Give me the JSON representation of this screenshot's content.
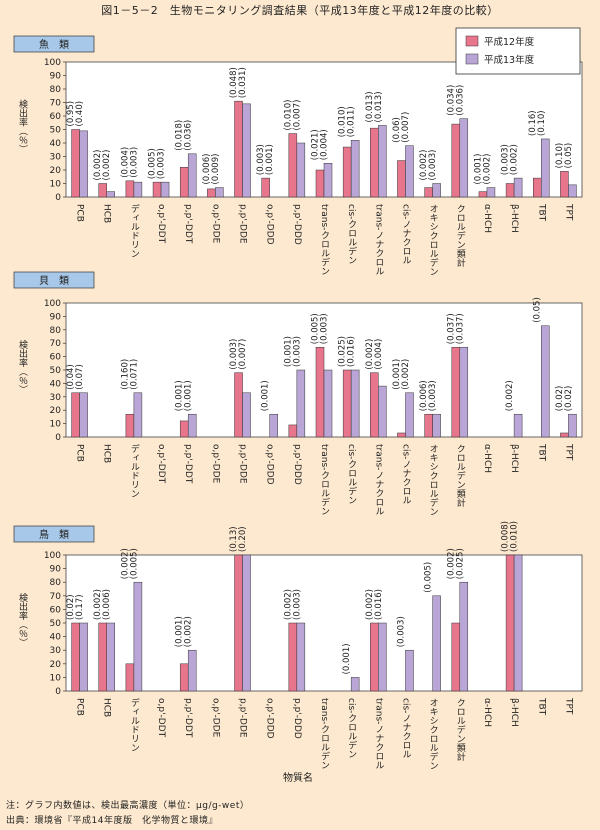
{
  "title": "図1－5－2　生物モニタリング調査結果（平成13年度と平成12年度の比較）",
  "colors": {
    "series_2000": "#e7758c",
    "series_2001": "#b9a6d6",
    "panel_label_bg": "#a7c8e8",
    "background": "#fde9cf",
    "plot_bg": "#ffffff"
  },
  "chart_data": [
    {
      "type": "bar",
      "title": "魚　類",
      "ylabel": "検出率（％）",
      "ylim": [
        0,
        100
      ],
      "yticks": [
        0,
        10,
        20,
        30,
        40,
        50,
        60,
        70,
        80,
        90,
        100
      ],
      "legend": {
        "placement": "top-right",
        "entries": [
          "平成12年度",
          "平成13年度"
        ]
      },
      "categories": [
        "PCB",
        "HCB",
        "ディルドリン",
        "o,p'-DDT",
        "p,p'-DDT",
        "o,p'-DDE",
        "p,p'-DDE",
        "o,p'-DDD",
        "p,p'-DDD",
        "trans-クロルデン",
        "cis-クロルデン",
        "trans-ノナクロル",
        "cis-ノナクロル",
        "オキシクロルデン",
        "クロルデン類計",
        "α-HCH",
        "β-HCH",
        "TBT",
        "TPT"
      ],
      "series": [
        {
          "name": "平成12年度",
          "values": [
            50,
            10,
            12,
            11,
            22,
            6,
            71,
            14,
            47,
            20,
            37,
            51,
            27,
            7,
            54,
            4,
            10,
            14,
            19
          ]
        },
        {
          "name": "平成13年度",
          "values": [
            49,
            4,
            11,
            11,
            32,
            7,
            69,
            0,
            40,
            25,
            42,
            53,
            38,
            10,
            58,
            7,
            14,
            43,
            9
          ]
        }
      ],
      "data_labels": [
        "(0.95)\n(0.40)",
        "(0.002)\n(0.002)",
        "(0.004)\n(0.003)",
        "(0.005)\n(0.003)",
        "(0.018)\n(0.036)",
        "(0.006)\n(0.009)",
        "(0.048)\n(0.031)",
        "(0.003)\n(0.001)",
        "(0.010)\n(0.007)",
        "(0.021)\n(0.004)",
        "(0.010)\n(0.011)",
        "(0.013)\n(0.013)",
        "(0.06)\n(0.007)",
        "(0.002)\n(0.003)",
        "(0.034)\n(0.036)",
        "(0.001)\n(0.002)",
        "(0.003)\n(0.002)",
        "(0.16)\n(0.10)",
        "(0.10)\n(0.05)"
      ]
    },
    {
      "type": "bar",
      "title": "貝　類",
      "ylabel": "検出率（％）",
      "ylim": [
        0,
        100
      ],
      "yticks": [
        0,
        10,
        20,
        30,
        40,
        50,
        60,
        70,
        80,
        90,
        100
      ],
      "categories": [
        "PCB",
        "HCB",
        "ディルドリン",
        "o,p'-DDT",
        "p,p'-DDT",
        "o,p'-DDE",
        "p,p'-DDE",
        "o,p'-DDD",
        "p,p'-DDD",
        "trans-クロルデン",
        "cis-クロルデン",
        "trans-ノナクロル",
        "cis-ノナクロル",
        "オキシクロルデン",
        "クロルデン類計",
        "α-HCH",
        "β-HCH",
        "TBT",
        "TPT"
      ],
      "series": [
        {
          "name": "平成12年度",
          "values": [
            33,
            0,
            17,
            0,
            12,
            0,
            48,
            0,
            9,
            67,
            50,
            48,
            3,
            17,
            67,
            0,
            0,
            0,
            3
          ]
        },
        {
          "name": "平成13年度",
          "values": [
            33,
            0,
            33,
            0,
            17,
            0,
            33,
            17,
            50,
            50,
            50,
            38,
            33,
            17,
            67,
            0,
            17,
            83,
            17
          ]
        }
      ],
      "data_labels": [
        "(0.04)\n(0.07)",
        "",
        "(0.160)\n(0.071)",
        "",
        "(0.001)\n(0.001)",
        "",
        "(0.003)\n(0.007)",
        "(0.001)",
        "(0.001)\n(0.003)",
        "(0.005)\n(0.003)",
        "(0.025)\n(0.016)",
        "(0.002)\n(0.004)",
        "(0.001)\n(0.002)",
        "(0.006)\n(0.003)",
        "(0.037)\n(0.037)",
        "",
        "(0.002)",
        "(0.05)",
        "(0.02)\n(0.02)"
      ]
    },
    {
      "type": "bar",
      "title": "鳥　類",
      "ylabel": "検出率（％）",
      "xlabel": "物質名",
      "ylim": [
        0,
        100
      ],
      "yticks": [
        0,
        10,
        20,
        30,
        40,
        50,
        60,
        70,
        80,
        90,
        100
      ],
      "categories": [
        "PCB",
        "HCB",
        "ディルドリン",
        "o,p'-DDT",
        "p,p'-DDT",
        "o,p'-DDE",
        "p,p'-DDE",
        "o,p'-DDD",
        "p,p'-DDD",
        "trans-クロルデン",
        "cis-クロルデン",
        "trans-ノナクロル",
        "cis-ノナクロル",
        "オキシクロルデン",
        "クロルデン類計",
        "α-HCH",
        "β-HCH",
        "TBT",
        "TPT"
      ],
      "series": [
        {
          "name": "平成12年度",
          "values": [
            50,
            50,
            20,
            0,
            20,
            0,
            100,
            0,
            50,
            0,
            0,
            50,
            0,
            0,
            50,
            0,
            100,
            0,
            0
          ]
        },
        {
          "name": "平成13年度",
          "values": [
            50,
            50,
            80,
            0,
            30,
            0,
            100,
            0,
            50,
            0,
            10,
            50,
            30,
            70,
            80,
            0,
            100,
            0,
            0
          ]
        }
      ],
      "data_labels": [
        "(0.02)\n(0.17)",
        "(0.002)\n(0.006)",
        "(0.002)\n(0.005)",
        "",
        "(0.001)\n(0.002)",
        "",
        "(0.13)\n(0.20)",
        "",
        "(0.002)\n(0.003)",
        "",
        "(0.001)",
        "(0.002)\n(0.016)",
        "(0.003)",
        "(0.005)",
        "(0.002)\n(0.025)",
        "",
        "(0.008)\n(0.010)",
        "",
        ""
      ]
    }
  ],
  "footer": {
    "note": "注：グラフ内数値は、検出最高濃度（単位：μg/g-wet）",
    "source": "出典：環境省『平成14年度版　化学物質と環境』"
  }
}
